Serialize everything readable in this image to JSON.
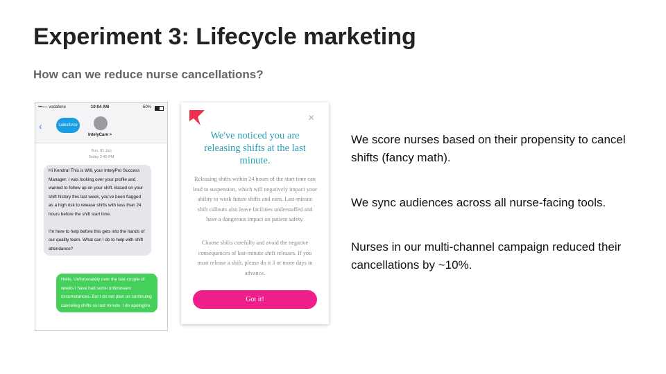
{
  "header": {
    "title": "Experiment 3: Lifecycle marketing",
    "subtitle": "How can we reduce nurse cancellations?"
  },
  "sms_screenshot": {
    "carrier": "•••○○ vodafone",
    "time": "10:04 AM",
    "battery": "50%",
    "logo": "salesforce",
    "contact": "IntelyCare >",
    "date": "Sun, 01 Jan",
    "timestamp": "Today 2:40 PM",
    "incoming": [
      "Hi Kendra! This is Will, your IntelyPro Success Manager. I was looking over your profile and wanted to follow up on your shift. Based on your shift history this last week, you've been flagged as a high risk to release shifts with less than 24 hours before the shift start time.",
      "I'm here to help before this gets into the hands of our quality team. What can I do to help with shift attendance?"
    ],
    "outgoing": "Hello. Unfortunately over the last couple of weeks I have had some unforeseen circumstances. But I do not plan on continuing canceling shifts so last minute. I do apologize."
  },
  "modal": {
    "heading": "We've noticed you are releasing shifts at the last minute.",
    "paragraphs": [
      "Releasing shifts within 24 hours of the start time can lead to suspension, which will negatively impact your ability to work future shifts and earn. Last-minute shift callouts also leave facilities understaffed and have a dangerous impact on patient safety.",
      "Choose shifts carefully and avoid the negative consequences of last-minute shift releases. If you must release a shift, please do it 3 or more days in advance."
    ],
    "button": "Got it!"
  },
  "bullets": [
    "We score nurses based on their propensity to cancel shifts (fancy math).",
    "We sync audiences across all nurse-facing tools.",
    "Nurses in our multi-channel campaign reduced their cancellations by ~10%."
  ]
}
